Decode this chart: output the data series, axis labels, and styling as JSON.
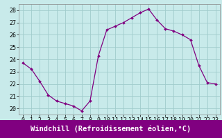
{
  "x": [
    0,
    1,
    2,
    3,
    4,
    5,
    6,
    7,
    8,
    9,
    10,
    11,
    12,
    13,
    14,
    15,
    16,
    17,
    18,
    19,
    20,
    21,
    22,
    23
  ],
  "y": [
    23.7,
    23.2,
    22.2,
    21.1,
    20.6,
    20.4,
    20.2,
    19.8,
    20.6,
    24.3,
    26.4,
    26.7,
    27.0,
    27.4,
    27.8,
    28.1,
    27.2,
    26.5,
    26.3,
    26.0,
    25.6,
    23.5,
    22.1,
    22.0
  ],
  "line_color": "#800080",
  "marker": "D",
  "marker_size": 2,
  "bg_color": "#c8eaea",
  "grid_color": "#a0cccc",
  "xlabel": "Windchill (Refroidissement éolien,°C)",
  "xlabel_color": "#ffffff",
  "xlabel_bg": "#800080",
  "ylim": [
    19.5,
    28.5
  ],
  "xlim": [
    -0.5,
    23.5
  ],
  "yticks": [
    20,
    21,
    22,
    23,
    24,
    25,
    26,
    27,
    28
  ],
  "xticks": [
    0,
    1,
    2,
    3,
    4,
    5,
    6,
    7,
    8,
    9,
    10,
    11,
    12,
    13,
    14,
    15,
    16,
    17,
    18,
    19,
    20,
    21,
    22,
    23
  ],
  "tick_fontsize": 6,
  "xlabel_fontsize": 7.5,
  "xlabel_bar_height": 0.13
}
